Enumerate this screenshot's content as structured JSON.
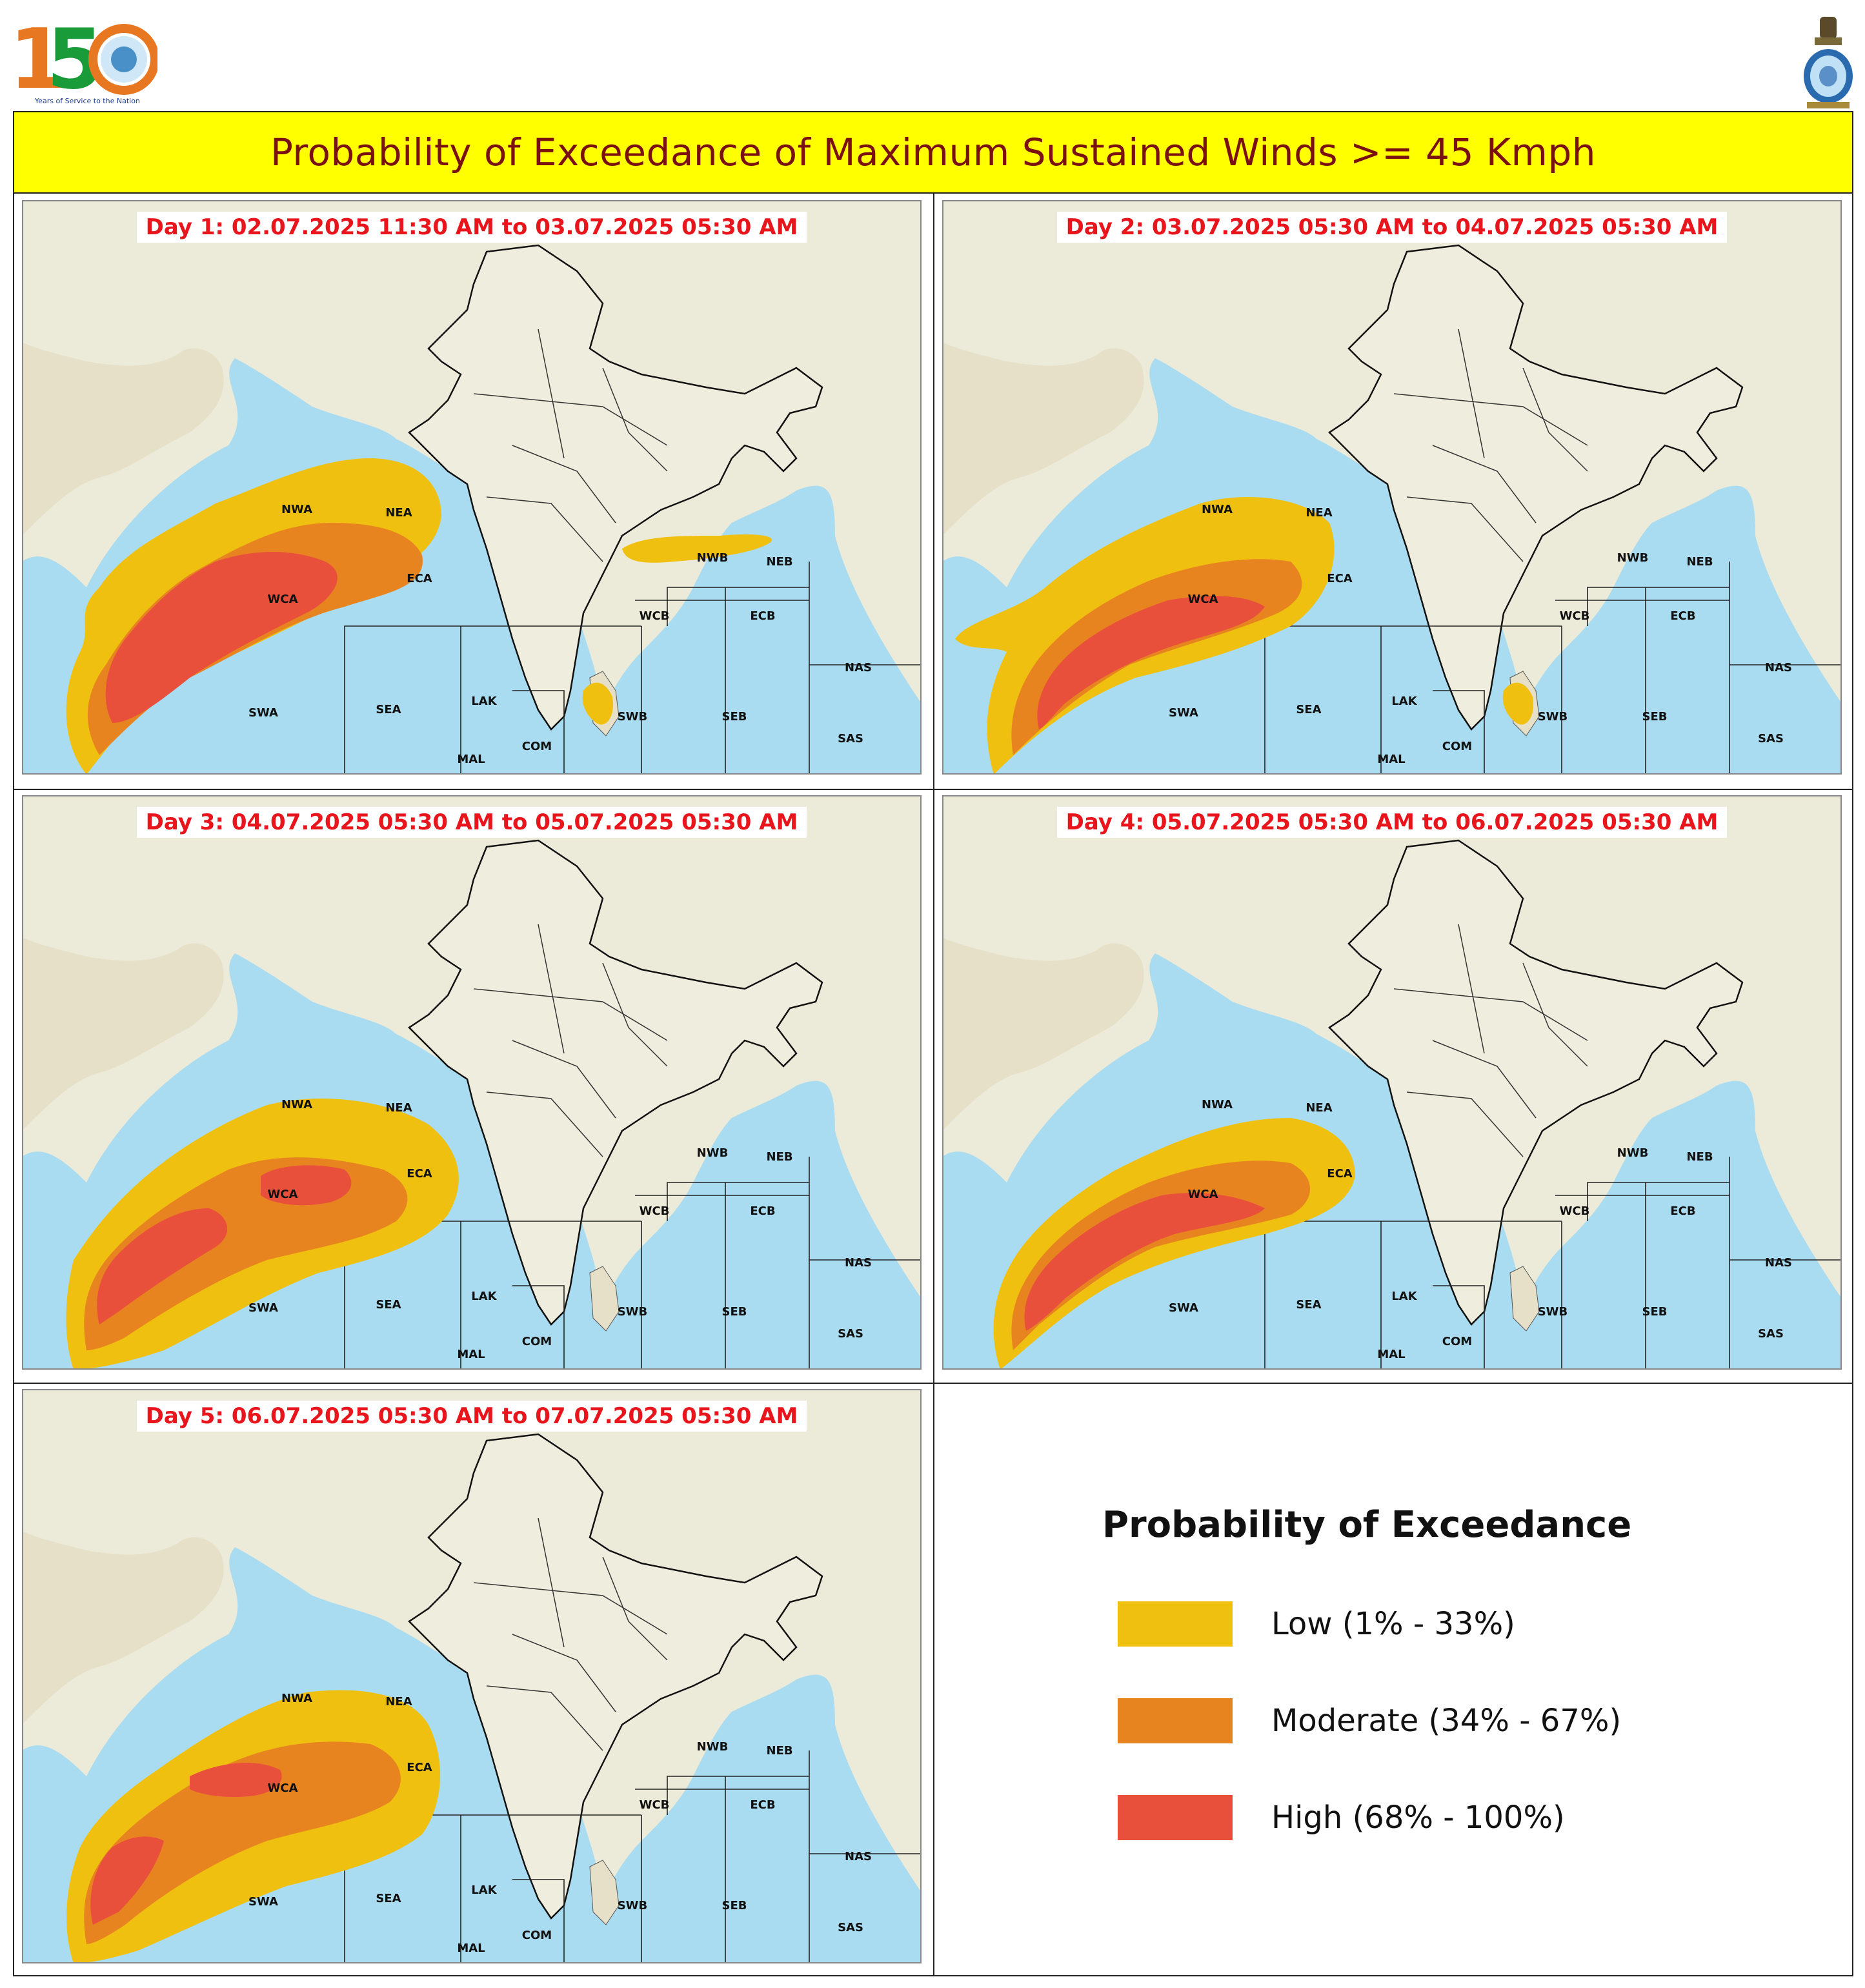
{
  "header": {
    "logo_left_icon": "imd-150-years-logo-icon",
    "logo_left_tagline": "Years of Service to the Nation",
    "logo_right_icon": "national-emblem-icon",
    "title": "Probability of Exceedance of Maximum Sustained Winds >= 45 Kmph"
  },
  "panels": [
    {
      "label": "Day 1: 02.07.2025 11:30 AM to 03.07.2025 05:30 AM",
      "nwb_blob": true,
      "srilanka_blob": true,
      "variant": 1
    },
    {
      "label": "Day 2: 03.07.2025 05:30 AM to 04.07.2025 05:30 AM",
      "nwb_blob": false,
      "srilanka_blob": true,
      "variant": 2
    },
    {
      "label": "Day 3: 04.07.2025 05:30 AM to 05.07.2025 05:30 AM",
      "nwb_blob": false,
      "srilanka_blob": false,
      "variant": 3
    },
    {
      "label": "Day 4: 05.07.2025 05:30 AM to 06.07.2025 05:30 AM",
      "nwb_blob": false,
      "srilanka_blob": false,
      "variant": 4
    },
    {
      "label": "Day 5: 06.07.2025 05:30 AM to 07.07.2025 05:30 AM",
      "nwb_blob": false,
      "srilanka_blob": false,
      "variant": 5
    }
  ],
  "regions": [
    "NWA",
    "NEA",
    "ECA",
    "WCA",
    "SWA",
    "SEA",
    "LAK",
    "MAL",
    "COM",
    "SWB",
    "SEB",
    "WCB",
    "ECB",
    "NWB",
    "NEB",
    "NAS",
    "SAS"
  ],
  "legend": {
    "title": "Probability of Exceedance",
    "items": [
      {
        "label": "Low (1% - 33%)",
        "color": "#f0c010"
      },
      {
        "label": "Moderate (34% - 67%)",
        "color": "#e88420"
      },
      {
        "label": "High (68% - 100%)",
        "color": "#e8503c"
      }
    ]
  },
  "colors": {
    "land": "#ecead8",
    "ocean": "#a9dcf0",
    "title_bg": "#ffff00",
    "title_text": "#7b1010",
    "day_label": "#e8151c"
  }
}
